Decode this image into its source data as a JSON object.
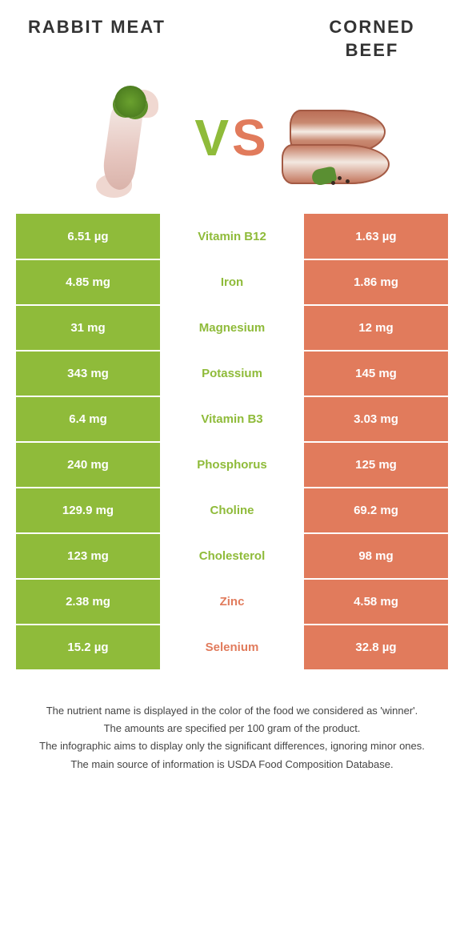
{
  "header": {
    "left_title": "RABBIT MEAT",
    "right_title": "CORNED BEEF",
    "vs_v": "V",
    "vs_s": "S"
  },
  "palette": {
    "left_color": "#8fbb3a",
    "right_color": "#e17b5c",
    "background": "#ffffff",
    "text": "#333333"
  },
  "table": {
    "left_bg": "#8fbb3a",
    "right_bg": "#e17b5c",
    "rows": [
      {
        "nutrient": "Vitamin B12",
        "left": "6.51 µg",
        "right": "1.63 µg",
        "winner": "left"
      },
      {
        "nutrient": "Iron",
        "left": "4.85 mg",
        "right": "1.86 mg",
        "winner": "left"
      },
      {
        "nutrient": "Magnesium",
        "left": "31 mg",
        "right": "12 mg",
        "winner": "left"
      },
      {
        "nutrient": "Potassium",
        "left": "343 mg",
        "right": "145 mg",
        "winner": "left"
      },
      {
        "nutrient": "Vitamin B3",
        "left": "6.4 mg",
        "right": "3.03 mg",
        "winner": "left"
      },
      {
        "nutrient": "Phosphorus",
        "left": "240 mg",
        "right": "125 mg",
        "winner": "left"
      },
      {
        "nutrient": "Choline",
        "left": "129.9 mg",
        "right": "69.2 mg",
        "winner": "left"
      },
      {
        "nutrient": "Cholesterol",
        "left": "123 mg",
        "right": "98 mg",
        "winner": "left"
      },
      {
        "nutrient": "Zinc",
        "left": "2.38 mg",
        "right": "4.58 mg",
        "winner": "right"
      },
      {
        "nutrient": "Selenium",
        "left": "15.2 µg",
        "right": "32.8 µg",
        "winner": "right"
      }
    ]
  },
  "footnotes": {
    "line1": "The nutrient name is displayed in the color of the food we considered as 'winner'.",
    "line2": "The amounts are specified per 100 gram of the product.",
    "line3": "The infographic aims to display only the significant differences, ignoring minor ones.",
    "line4": "The main source of information is USDA Food Composition Database."
  }
}
